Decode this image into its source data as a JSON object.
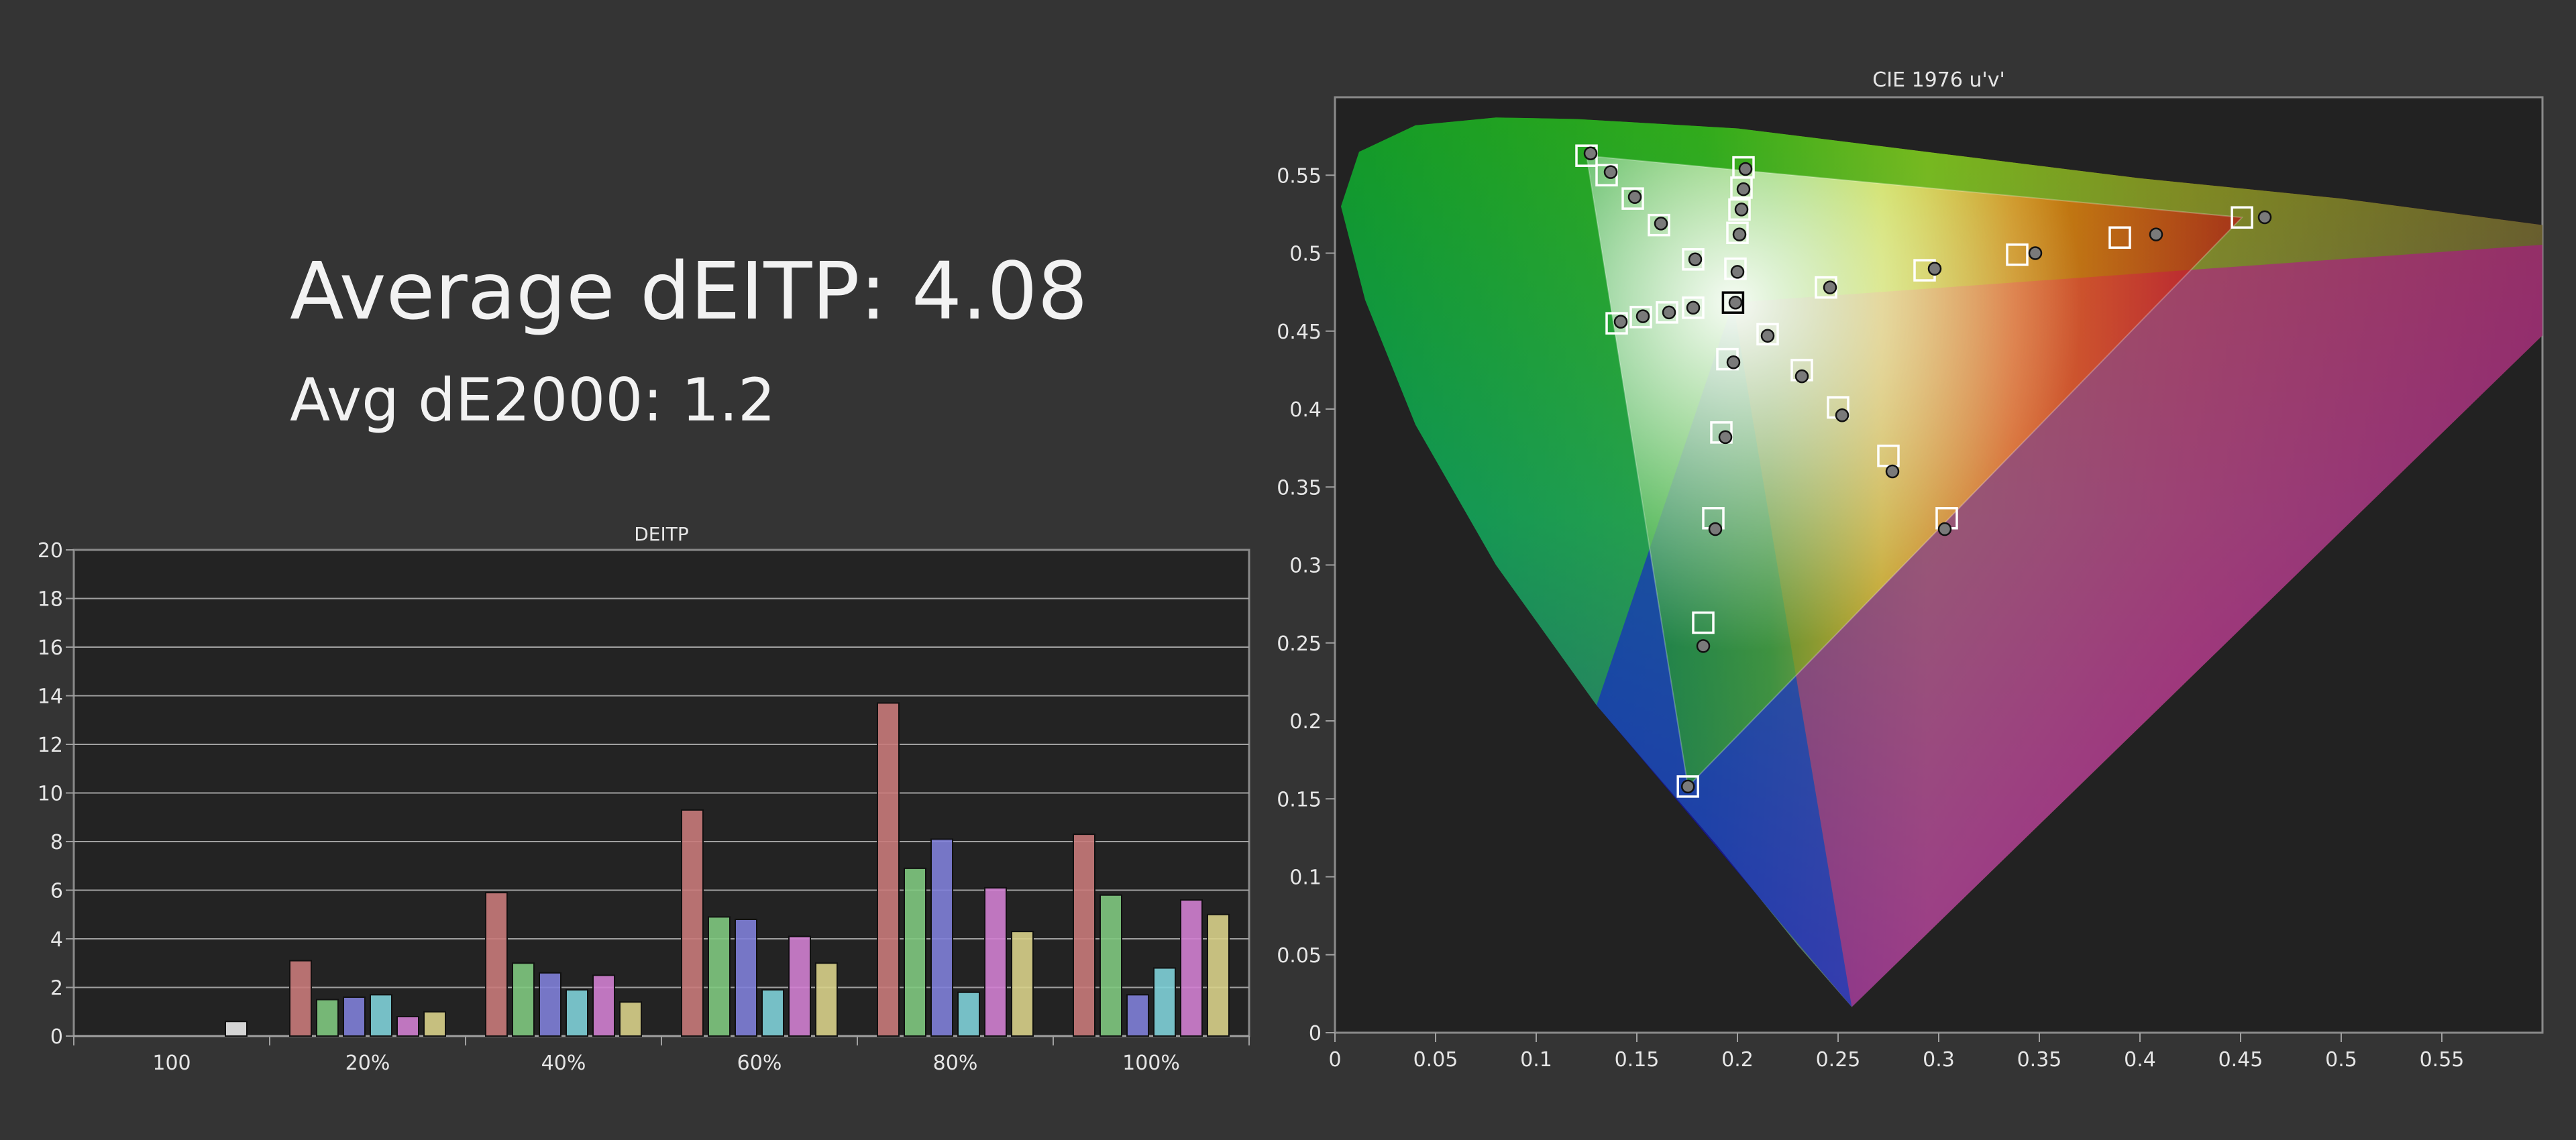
{
  "summary": {
    "average_deitp": "Average dEITP: 4.08",
    "avg_de2000": "Avg dE2000: 1.2"
  },
  "chart_data": [
    {
      "type": "bar",
      "title": "DEITP",
      "xlabel": "",
      "ylabel": "",
      "ylim": [
        0,
        20
      ],
      "yticks": [
        0,
        2,
        4,
        6,
        8,
        10,
        12,
        14,
        16,
        18,
        20
      ],
      "grid": true,
      "legend": "none",
      "categories": [
        "100",
        "20%",
        "40%",
        "60%",
        "80%",
        "100%"
      ],
      "series": [
        {
          "color": "#e8e8e8",
          "values": [
            0.6,
            null,
            null,
            null,
            null,
            null
          ]
        },
        {
          "color": "#c87a7a",
          "values": [
            null,
            3.1,
            5.9,
            9.3,
            13.7,
            8.3
          ]
        },
        {
          "color": "#7fc87f",
          "values": [
            null,
            1.5,
            3.0,
            4.9,
            6.9,
            5.8
          ]
        },
        {
          "color": "#7f7fd8",
          "values": [
            null,
            1.6,
            2.6,
            4.8,
            8.1,
            1.7
          ]
        },
        {
          "color": "#7fd0d8",
          "values": [
            null,
            1.7,
            1.9,
            1.9,
            1.8,
            2.8
          ]
        },
        {
          "color": "#d07fd0",
          "values": [
            null,
            0.8,
            2.5,
            4.1,
            6.1,
            5.6
          ]
        },
        {
          "color": "#d8d08a",
          "values": [
            null,
            1.0,
            1.4,
            3.0,
            4.3,
            5.0
          ]
        }
      ]
    },
    {
      "type": "scatter",
      "title": "CIE 1976 u'v'",
      "xlabel": "",
      "ylabel": "",
      "xlim": [
        0,
        0.6
      ],
      "ylim": [
        0,
        0.6
      ],
      "xticks": [
        "0",
        "0.05",
        "0.1",
        "0.15",
        "0.2",
        "0.25",
        "0.3",
        "0.35",
        "0.4",
        "0.45",
        "0.5",
        "0.55"
      ],
      "yticks": [
        "0",
        "0.05",
        "0.1",
        "0.15",
        "0.2",
        "0.25",
        "0.3",
        "0.35",
        "0.4",
        "0.45",
        "0.5",
        "0.55"
      ],
      "grid": false,
      "legend": "none",
      "gamut_triangle": {
        "red": [
          0.4507,
          0.5229
        ],
        "green": [
          0.125,
          0.5625
        ],
        "blue": [
          0.1754,
          0.1579
        ]
      },
      "white_point": [
        0.1978,
        0.4683
      ],
      "series": [
        {
          "name": "",
          "marker": "square",
          "points": [
            [
              0.1978,
              0.4683
            ],
            [
              0.125,
              0.5625
            ],
            [
              0.135,
              0.55
            ],
            [
              0.148,
              0.535
            ],
            [
              0.161,
              0.518
            ],
            [
              0.178,
              0.496
            ],
            [
              0.14,
              0.455
            ],
            [
              0.152,
              0.459
            ],
            [
              0.165,
              0.462
            ],
            [
              0.178,
              0.465
            ],
            [
              0.203,
              0.555
            ],
            [
              0.202,
              0.542
            ],
            [
              0.201,
              0.528
            ],
            [
              0.2,
              0.513
            ],
            [
              0.199,
              0.49
            ],
            [
              0.244,
              0.478
            ],
            [
              0.293,
              0.489
            ],
            [
              0.339,
              0.499
            ],
            [
              0.39,
              0.51
            ],
            [
              0.4507,
              0.5229
            ],
            [
              0.215,
              0.448
            ],
            [
              0.232,
              0.425
            ],
            [
              0.25,
              0.401
            ],
            [
              0.275,
              0.37
            ],
            [
              0.304,
              0.33
            ],
            [
              0.195,
              0.432
            ],
            [
              0.192,
              0.385
            ],
            [
              0.188,
              0.33
            ],
            [
              0.183,
              0.263
            ],
            [
              0.1754,
              0.1579
            ]
          ]
        },
        {
          "name": "",
          "marker": "circle",
          "points": [
            [
              0.199,
              0.4683
            ],
            [
              0.127,
              0.564
            ],
            [
              0.137,
              0.552
            ],
            [
              0.149,
              0.536
            ],
            [
              0.162,
              0.519
            ],
            [
              0.179,
              0.496
            ],
            [
              0.142,
              0.456
            ],
            [
              0.153,
              0.4595
            ],
            [
              0.166,
              0.462
            ],
            [
              0.178,
              0.465
            ],
            [
              0.204,
              0.554
            ],
            [
              0.203,
              0.541
            ],
            [
              0.202,
              0.528
            ],
            [
              0.201,
              0.512
            ],
            [
              0.2,
              0.488
            ],
            [
              0.246,
              0.478
            ],
            [
              0.298,
              0.49
            ],
            [
              0.348,
              0.5
            ],
            [
              0.408,
              0.512
            ],
            [
              0.462,
              0.523
            ],
            [
              0.215,
              0.447
            ],
            [
              0.232,
              0.421
            ],
            [
              0.252,
              0.396
            ],
            [
              0.277,
              0.36
            ],
            [
              0.303,
              0.323
            ],
            [
              0.198,
              0.43
            ],
            [
              0.194,
              0.382
            ],
            [
              0.189,
              0.323
            ],
            [
              0.183,
              0.248
            ],
            [
              0.1754,
              0.1579
            ]
          ]
        }
      ]
    }
  ]
}
